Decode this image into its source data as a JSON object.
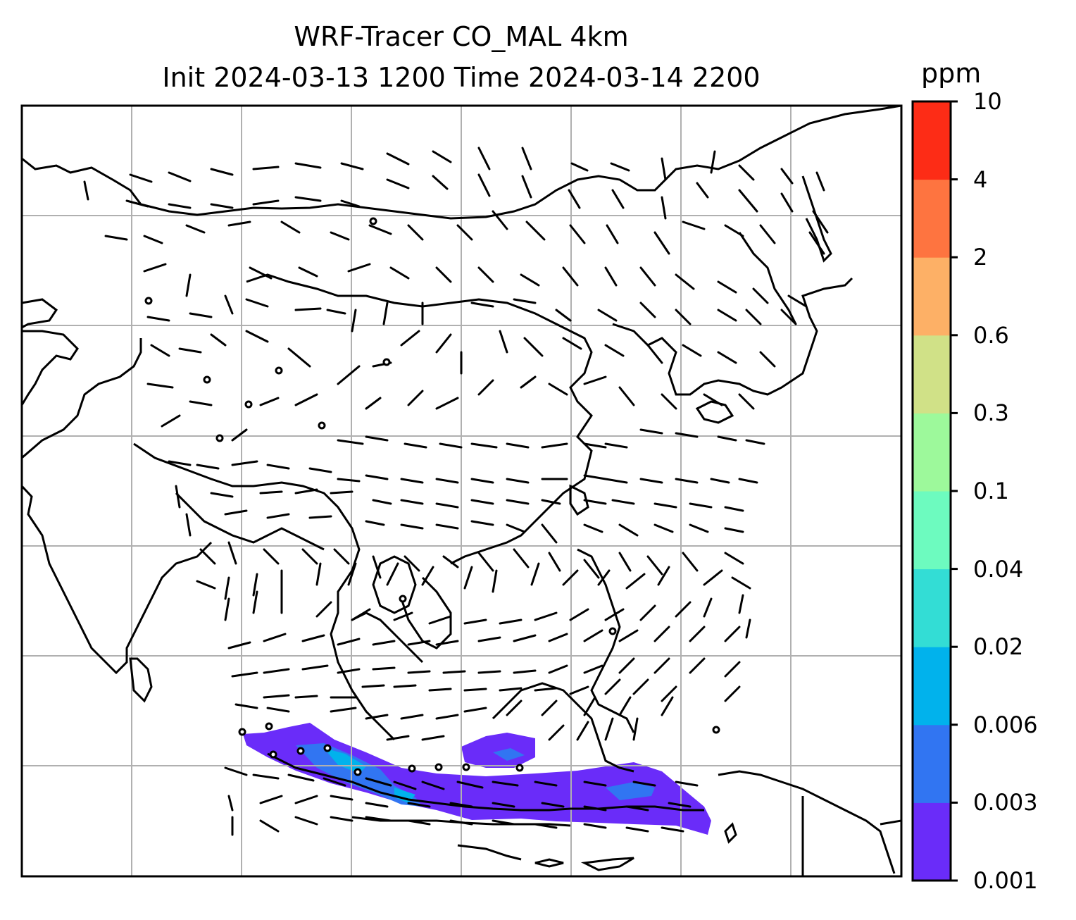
{
  "title": {
    "line1": "WRF-Tracer CO_MAL 4km",
    "line2": "Init 2024-03-13 1200 Time 2024-03-14 2200"
  },
  "colorbar": {
    "units": "ppm",
    "levels": [
      "0.001",
      "0.003",
      "0.006",
      "0.02",
      "0.04",
      "0.1",
      "0.3",
      "0.6",
      "2",
      "4",
      "10"
    ],
    "colors": [
      "#6a2cf9",
      "#3175f2",
      "#01b2ec",
      "#33ddd5",
      "#6dfbbf",
      "#9df99b",
      "#d0e187",
      "#fdb066",
      "#fe7440",
      "#fd2c16"
    ]
  },
  "map": {
    "projection": "lat-lon",
    "gridlines": true,
    "field": "CO_MAL tracer concentration",
    "plume_region": "Java / southern Borneo",
    "plume_colors": [
      "#6a2cf9",
      "#3175f2",
      "#01b2ec"
    ],
    "wind_barbs": true
  }
}
